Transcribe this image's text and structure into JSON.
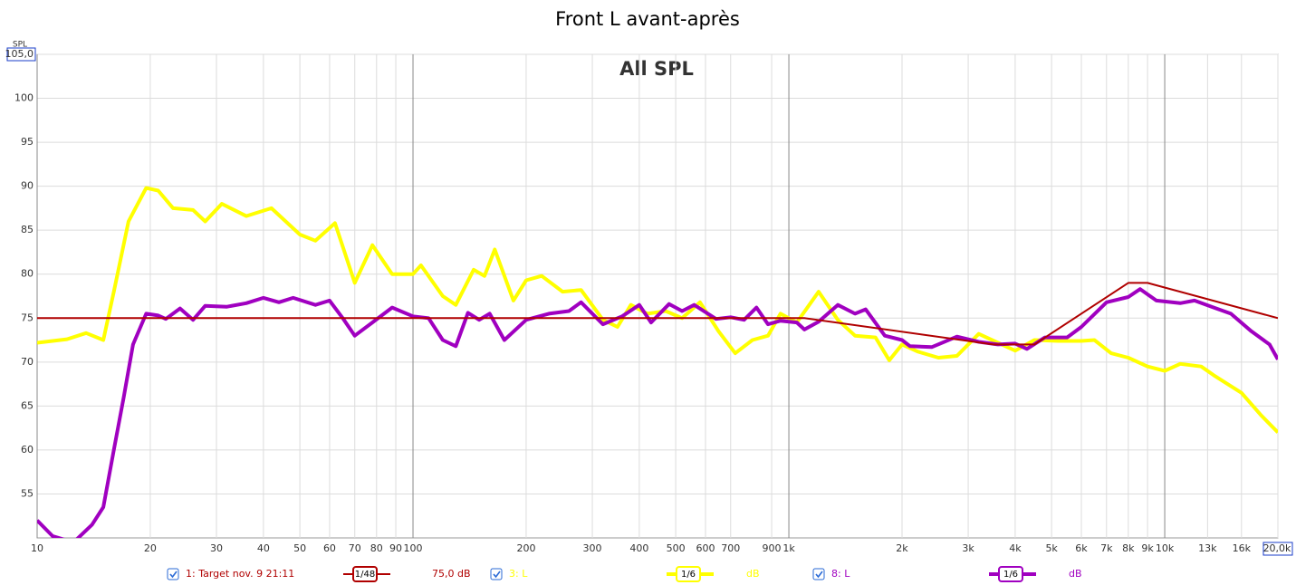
{
  "chart_data": {
    "type": "line",
    "title": "Front L avant-après",
    "annotation": "All SPL",
    "y_label": "SPL",
    "xscale": "log",
    "grid": true,
    "xlim": [
      10,
      20000
    ],
    "ylim": [
      50,
      105
    ],
    "yticks": [
      55,
      60,
      65,
      70,
      75,
      80,
      85,
      90,
      95,
      100,
      {
        "value": 105,
        "label": "105,0"
      }
    ],
    "xticks": [
      10,
      20,
      30,
      40,
      50,
      60,
      70,
      80,
      90,
      100,
      200,
      300,
      400,
      500,
      600,
      700,
      900,
      {
        "value": 1000,
        "label": "1k"
      },
      {
        "value": 2000,
        "label": "2k"
      },
      {
        "value": 3000,
        "label": "3k"
      },
      {
        "value": 4000,
        "label": "4k"
      },
      {
        "value": 5000,
        "label": "5k"
      },
      {
        "value": 6000,
        "label": "6k"
      },
      {
        "value": 7000,
        "label": "7k"
      },
      {
        "value": 8000,
        "label": "8k"
      },
      {
        "value": 9000,
        "label": "9k"
      },
      {
        "value": 10000,
        "label": "10k"
      },
      {
        "value": 13000,
        "label": "13k"
      },
      {
        "value": 16000,
        "label": "16k"
      },
      {
        "value": 20000,
        "label": "20,0k"
      }
    ],
    "series": [
      {
        "name": "1: Target nov. 9 21:11",
        "color": "#b00000",
        "smoothing": "1/48",
        "offset": "75,0 dB",
        "x": [
          10,
          1100,
          3500,
          4500,
          8000,
          9000,
          20000
        ],
        "values": [
          75,
          75,
          72,
          72,
          79,
          79,
          75
        ]
      },
      {
        "name": "3: L",
        "color": "#ffff00",
        "smoothing": "1/6",
        "offset": "dB",
        "x": [
          10,
          12,
          13.5,
          15,
          16,
          17.5,
          19.5,
          21,
          23,
          26,
          28,
          31,
          36,
          42,
          50,
          55,
          62,
          70,
          78,
          88,
          100,
          105,
          120,
          130,
          145,
          155,
          165,
          185,
          200,
          220,
          250,
          280,
          320,
          350,
          380,
          420,
          470,
          520,
          580,
          650,
          720,
          800,
          880,
          950,
          1050,
          1200,
          1350,
          1500,
          1700,
          1850,
          2000,
          2200,
          2500,
          2800,
          3200,
          3600,
          4000,
          4500,
          5200,
          6000,
          6500,
          7200,
          8000,
          9000,
          10000,
          11000,
          12500,
          13500,
          16000,
          18000,
          20000
        ],
        "values": [
          72.2,
          72.6,
          73.3,
          72.5,
          78,
          86,
          89.8,
          89.5,
          87.5,
          87.3,
          86,
          88,
          86.6,
          87.5,
          84.5,
          83.8,
          85.8,
          79,
          83.3,
          80,
          80,
          81,
          77.5,
          76.5,
          80.5,
          79.8,
          82.8,
          77,
          79.3,
          79.8,
          78,
          78.2,
          74.8,
          74,
          76.5,
          75.5,
          75.8,
          75,
          76.8,
          73.5,
          71,
          72.5,
          73,
          75.5,
          74.5,
          78,
          74.8,
          73,
          72.8,
          70.2,
          72,
          71.2,
          70.5,
          70.7,
          73.2,
          72.2,
          71.3,
          72.5,
          72.4,
          72.4,
          72.5,
          71,
          70.5,
          69.5,
          69,
          69.8,
          69.5,
          68.5,
          66.5,
          64,
          62
        ]
      },
      {
        "name": "8: L",
        "color": "#a000c0",
        "smoothing": "1/6",
        "offset": "dB",
        "x": [
          10,
          11,
          12.5,
          14,
          15,
          16,
          17,
          18,
          19.5,
          21,
          22,
          24,
          26,
          28,
          32,
          36,
          40,
          44,
          48,
          55,
          60,
          65,
          70,
          78,
          88,
          100,
          110,
          120,
          130,
          140,
          150,
          160,
          175,
          200,
          230,
          260,
          280,
          320,
          360,
          400,
          430,
          480,
          520,
          560,
          640,
          700,
          760,
          820,
          880,
          950,
          1050,
          1100,
          1200,
          1350,
          1500,
          1600,
          1800,
          2000,
          2100,
          2400,
          2800,
          3200,
          3600,
          4000,
          4300,
          4800,
          5500,
          6000,
          7000,
          8000,
          8600,
          9500,
          11000,
          12000,
          13500,
          15000,
          17000,
          19000,
          20000
        ],
        "values": [
          52,
          50.2,
          49.5,
          51.5,
          53.5,
          60,
          66,
          72,
          75.5,
          75.3,
          74.9,
          76.1,
          74.8,
          76.4,
          76.3,
          76.7,
          77.3,
          76.8,
          77.3,
          76.5,
          77,
          75,
          73,
          74.5,
          76.2,
          75.2,
          75,
          72.5,
          71.8,
          75.6,
          74.8,
          75.5,
          72.5,
          74.8,
          75.5,
          75.8,
          76.8,
          74.3,
          75.2,
          76.5,
          74.5,
          76.6,
          75.8,
          76.5,
          74.9,
          75.1,
          74.8,
          76.2,
          74.3,
          74.7,
          74.5,
          73.7,
          74.6,
          76.5,
          75.5,
          76,
          73,
          72.5,
          71.8,
          71.7,
          72.9,
          72.3,
          72,
          72.1,
          71.5,
          72.8,
          72.8,
          74,
          76.8,
          77.4,
          78.3,
          77,
          76.7,
          77,
          76.2,
          75.5,
          73.5,
          72,
          70.3
        ]
      }
    ]
  }
}
